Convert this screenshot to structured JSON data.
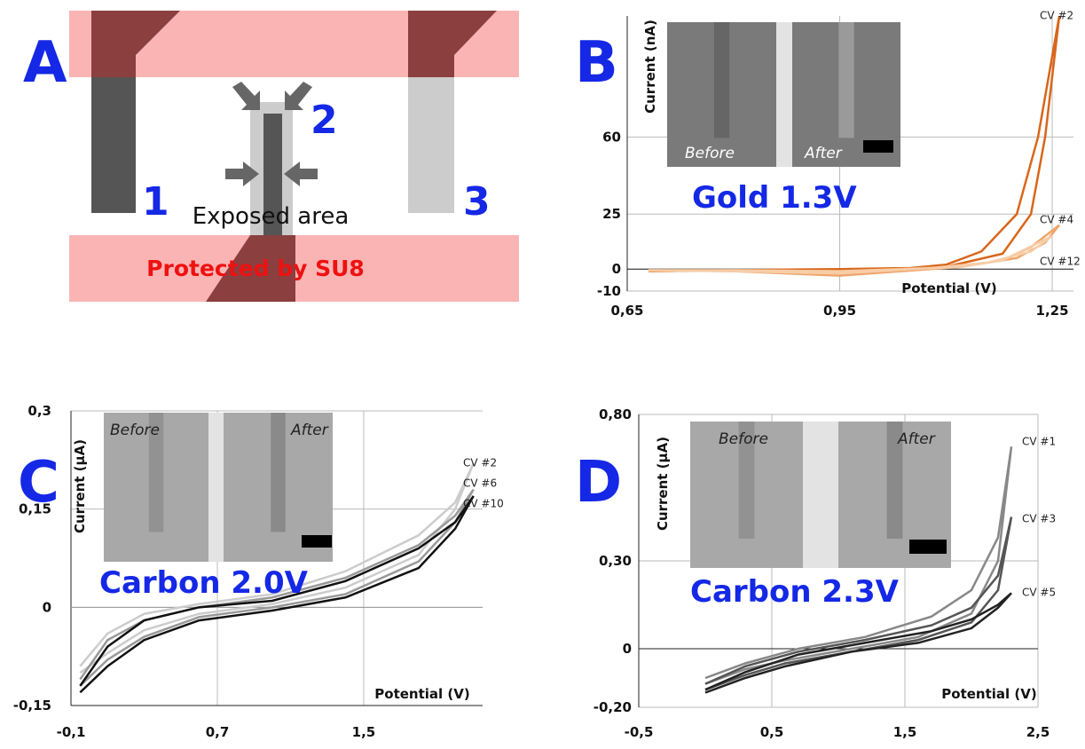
{
  "diagram": {
    "panel_label": "A",
    "electrode_labels": [
      "1",
      "2",
      "3"
    ],
    "exposed_label": "Exposed area",
    "protected_label": "Protected by SU8"
  },
  "chart_data": [
    {
      "type": "line",
      "panel_label": "B",
      "annotation": "Gold 1.3V",
      "inset_labels": [
        "Before",
        "After"
      ],
      "x_label": "Potential (V)",
      "y_label": "Current (nA)",
      "xlim": [
        0.65,
        1.28
      ],
      "ylim": [
        -10,
        115
      ],
      "xticks": [
        {
          "value": 0.65,
          "label": "0,65"
        },
        {
          "value": 0.95,
          "label": "0,95"
        },
        {
          "value": 1.25,
          "label": "1,25"
        }
      ],
      "yticks": [
        -10,
        0,
        25,
        60
      ],
      "grid": true,
      "series": [
        {
          "name": "CV #2",
          "color": "#d9661a",
          "x": [
            0.68,
            0.8,
            0.95,
            1.05,
            1.1,
            1.15,
            1.2,
            1.23,
            1.26,
            1.24,
            1.22,
            1.18,
            1.1,
            0.95,
            0.8,
            0.68
          ],
          "values": [
            -1,
            -0.5,
            0,
            0.5,
            2,
            8,
            25,
            60,
            115,
            60,
            25,
            7,
            1,
            -2,
            -0.5,
            -0.5
          ]
        },
        {
          "name": "CV #4",
          "color": "#efa56a",
          "x": [
            0.68,
            0.8,
            0.95,
            1.05,
            1.12,
            1.18,
            1.22,
            1.26,
            1.24,
            1.2,
            1.12,
            0.95,
            0.8,
            0.68
          ],
          "values": [
            -1,
            -0.5,
            -1,
            0.3,
            1,
            4,
            10,
            20,
            12,
            5,
            1,
            -3,
            -1,
            -0.5
          ]
        },
        {
          "name": "CV #12",
          "color": "#f7cda8",
          "x": [
            0.68,
            0.8,
            0.95,
            1.05,
            1.12,
            1.18,
            1.25,
            1.22,
            1.16,
            1.08,
            0.95,
            0.8,
            0.68
          ],
          "values": [
            -0.5,
            -0.5,
            -1,
            0,
            1,
            4,
            15,
            8,
            3,
            0.5,
            -2,
            -1,
            -0.5
          ]
        }
      ]
    },
    {
      "type": "line",
      "panel_label": "C",
      "annotation": "Carbon 2.0V",
      "inset_labels": [
        "Before",
        "After"
      ],
      "x_label": "Potential (V)",
      "y_label": "Current (µA)",
      "xlim": [
        -0.1,
        2.15
      ],
      "ylim": [
        -0.15,
        0.3
      ],
      "xticks": [
        {
          "value": -0.1,
          "label": "-0,1"
        },
        {
          "value": 0.7,
          "label": "0,7"
        },
        {
          "value": 1.5,
          "label": "1,5"
        }
      ],
      "yticks": [
        {
          "value": 0.3,
          "label": "0,3"
        },
        {
          "value": 0.15,
          "label": "0,15"
        },
        0,
        {
          "value": -0.15,
          "label": "-0,15"
        }
      ],
      "grid": true,
      "series": [
        {
          "name": "CV #2",
          "color": "#cccccc",
          "x": [
            -0.05,
            0.1,
            0.3,
            0.6,
            1,
            1.4,
            1.8,
            2.0,
            2.1,
            2.0,
            1.8,
            1.4,
            1,
            0.6,
            0.3,
            0.1,
            -0.05
          ],
          "values": [
            -0.09,
            -0.04,
            -0.01,
            0.005,
            0.02,
            0.055,
            0.11,
            0.16,
            0.22,
            0.15,
            0.08,
            0.03,
            0.005,
            -0.01,
            -0.035,
            -0.07,
            -0.1
          ]
        },
        {
          "name": "CV #6",
          "color": "#999999",
          "x": [
            -0.05,
            0.1,
            0.3,
            0.6,
            1,
            1.4,
            1.8,
            2.0,
            2.1,
            2.0,
            1.8,
            1.4,
            1,
            0.6,
            0.3,
            0.1,
            -0.05
          ],
          "values": [
            -0.11,
            -0.05,
            -0.02,
            0,
            0.015,
            0.045,
            0.095,
            0.14,
            0.18,
            0.13,
            0.07,
            0.02,
            0,
            -0.015,
            -0.045,
            -0.08,
            -0.12
          ]
        },
        {
          "name": "CV #10",
          "color": "#111111",
          "x": [
            -0.05,
            0.1,
            0.3,
            0.6,
            1,
            1.4,
            1.8,
            2.0,
            2.1,
            2.0,
            1.8,
            1.4,
            1,
            0.6,
            0.3,
            0.1,
            -0.05
          ],
          "values": [
            -0.12,
            -0.06,
            -0.02,
            0,
            0.01,
            0.04,
            0.09,
            0.13,
            0.17,
            0.12,
            0.06,
            0.015,
            -0.005,
            -0.02,
            -0.05,
            -0.09,
            -0.13
          ]
        }
      ]
    },
    {
      "type": "line",
      "panel_label": "D",
      "annotation": "Carbon 2.3V",
      "inset_labels": [
        "Before",
        "After"
      ],
      "x_label": "Potential (V)",
      "y_label": "Current (µA)",
      "xlim": [
        -0.5,
        2.5
      ],
      "ylim": [
        -0.2,
        0.8
      ],
      "xticks": [
        {
          "value": -0.5,
          "label": "-0,5"
        },
        {
          "value": 0.5,
          "label": "0,5"
        },
        {
          "value": 1.5,
          "label": "1,5"
        },
        {
          "value": 2.5,
          "label": "2,5"
        }
      ],
      "yticks": [
        {
          "value": 0.8,
          "label": "0,80"
        },
        {
          "value": 0.3,
          "label": "0,30"
        },
        0,
        {
          "value": -0.2,
          "label": "-0,20"
        }
      ],
      "grid": true,
      "series": [
        {
          "name": "CV #1",
          "color": "#888888",
          "x": [
            0,
            0.3,
            0.7,
            1.2,
            1.7,
            2.0,
            2.2,
            2.3,
            2.2,
            2.0,
            1.6,
            1.1,
            0.6,
            0.3,
            0
          ],
          "values": [
            -0.1,
            -0.05,
            0,
            0.04,
            0.11,
            0.2,
            0.38,
            0.69,
            0.3,
            0.12,
            0.04,
            0,
            -0.04,
            -0.07,
            -0.12
          ]
        },
        {
          "name": "CV #3",
          "color": "#555555",
          "x": [
            0,
            0.3,
            0.7,
            1.2,
            1.7,
            2.0,
            2.2,
            2.3,
            2.2,
            2.0,
            1.6,
            1.1,
            0.6,
            0.3,
            0
          ],
          "values": [
            -0.12,
            -0.06,
            -0.01,
            0.03,
            0.08,
            0.14,
            0.25,
            0.45,
            0.2,
            0.09,
            0.03,
            -0.01,
            -0.05,
            -0.09,
            -0.14
          ]
        },
        {
          "name": "CV #5",
          "color": "#222222",
          "x": [
            0,
            0.3,
            0.7,
            1.2,
            1.7,
            2.0,
            2.2,
            2.3,
            2.2,
            2.0,
            1.6,
            1.1,
            0.6,
            0.3,
            0
          ],
          "values": [
            -0.14,
            -0.08,
            -0.02,
            0.02,
            0.06,
            0.1,
            0.15,
            0.19,
            0.14,
            0.07,
            0.02,
            -0.01,
            -0.06,
            -0.1,
            -0.15
          ]
        }
      ]
    }
  ]
}
